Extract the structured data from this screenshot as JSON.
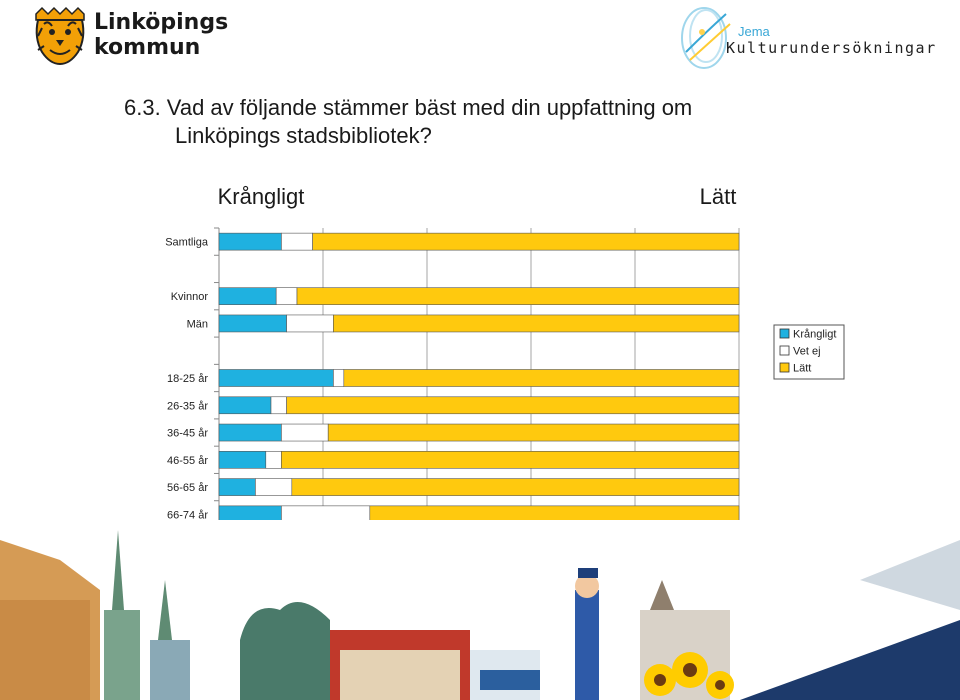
{
  "header": {
    "brand_line1": "Linköpings",
    "brand_line2": "kommun",
    "partner_name": "Jema",
    "partner_line": "Kulturundersökningar"
  },
  "question": {
    "line1": "6.3. Vad av följande stämmer bäst med din uppfattning om",
    "line2": "Linköpings stadsbibliotek?"
  },
  "scale_labels": {
    "left": "Krångligt",
    "right": "Lätt"
  },
  "colors": {
    "krangligt": "#1fb1e0",
    "vet_ej": "#ffffff",
    "latt": "#ffc90e",
    "grid": "#a6a6a6"
  },
  "chart_data": {
    "type": "bar",
    "orientation": "horizontal",
    "stacked": true,
    "categories": [
      "Samtliga",
      "",
      "Kvinnor",
      "Män",
      "",
      "18-25 år",
      "26-35 år",
      "36-45 år",
      "46-55 år",
      "56-65 år",
      "66-74 år"
    ],
    "series": [
      {
        "name": "Krångligt",
        "values": [
          12,
          null,
          11,
          13,
          null,
          22,
          10,
          12,
          9,
          7,
          12
        ]
      },
      {
        "name": "Vet ej",
        "values": [
          6,
          null,
          4,
          9,
          null,
          2,
          3,
          9,
          3,
          7,
          17
        ]
      },
      {
        "name": "Lätt",
        "values": [
          82,
          null,
          85,
          78,
          null,
          76,
          87,
          79,
          88,
          86,
          71
        ]
      }
    ],
    "x_ticks": [
      "0%",
      "20%",
      "40%",
      "60%",
      "80%",
      "100%"
    ],
    "xlim": [
      0,
      100
    ],
    "grid": true,
    "legend_position": "right"
  }
}
